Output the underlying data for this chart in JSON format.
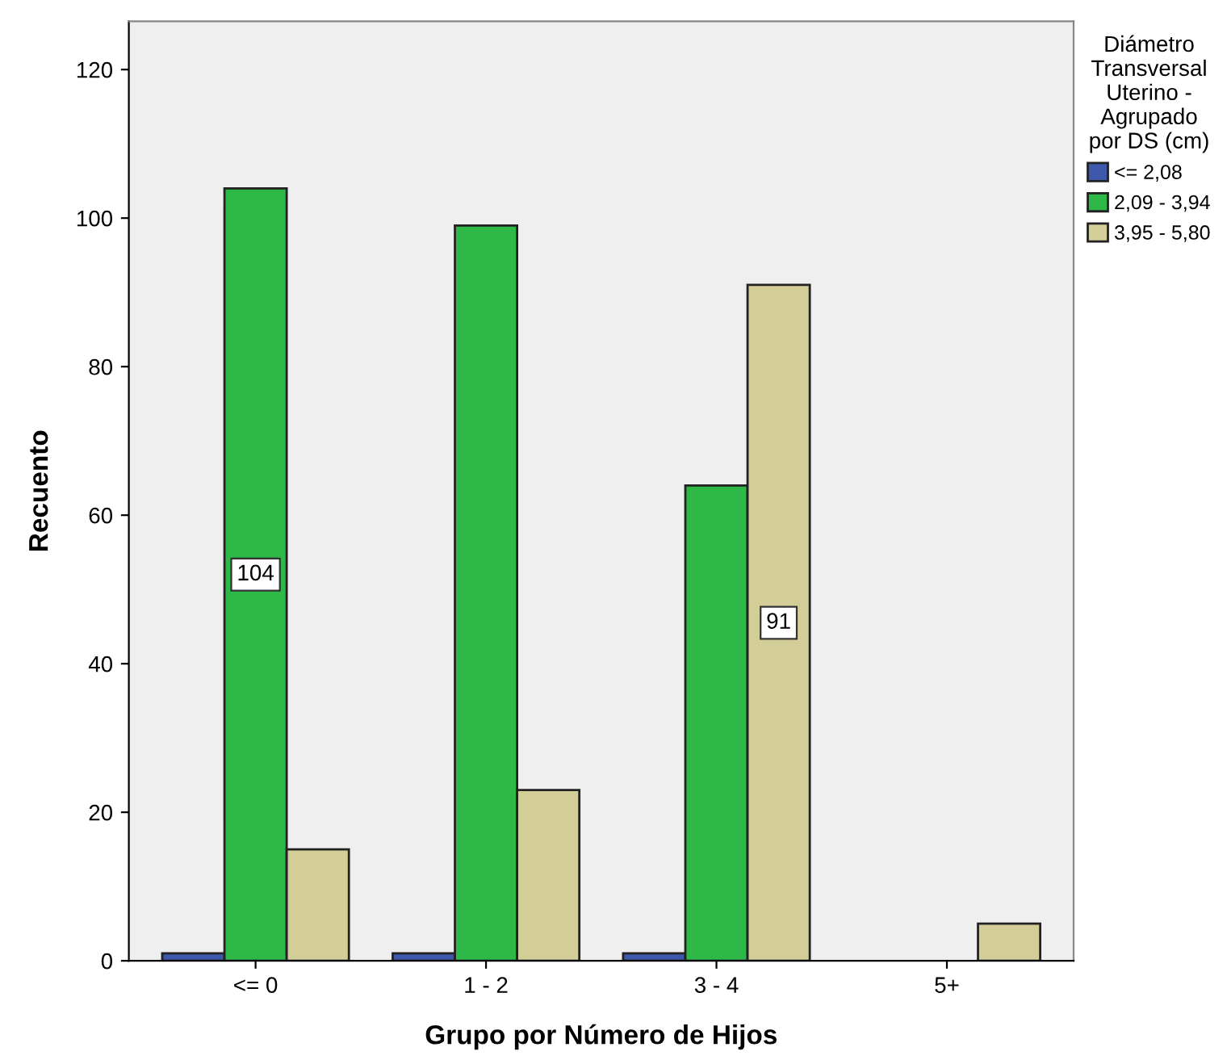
{
  "chart_data": {
    "type": "bar",
    "xlabel": "Grupo por Número de Hijos",
    "ylabel": "Recuento",
    "legend_title": "Diámetro\nTransversal\nUterino -\nAgrupado\npor DS (cm)",
    "categories": [
      "<= 0",
      "1 - 2",
      "3 - 4",
      "5+"
    ],
    "series": [
      {
        "name": "<= 2,08",
        "color": "#3e58ac",
        "values": [
          1,
          1,
          1,
          null
        ]
      },
      {
        "name": "2,09 - 3,94",
        "color": "#2eb848",
        "values": [
          104,
          99,
          64,
          null
        ],
        "value_labels": [
          "104",
          null,
          null,
          null
        ]
      },
      {
        "name": "3,95 - 5,80",
        "color": "#d3ce97",
        "values": [
          15,
          23,
          91,
          5
        ],
        "value_labels": [
          null,
          null,
          "91",
          null
        ]
      }
    ],
    "ylim": [
      0,
      126.5
    ],
    "yticks": [
      0,
      20,
      40,
      60,
      80,
      100,
      120
    ],
    "grid": false,
    "legend": "right"
  }
}
